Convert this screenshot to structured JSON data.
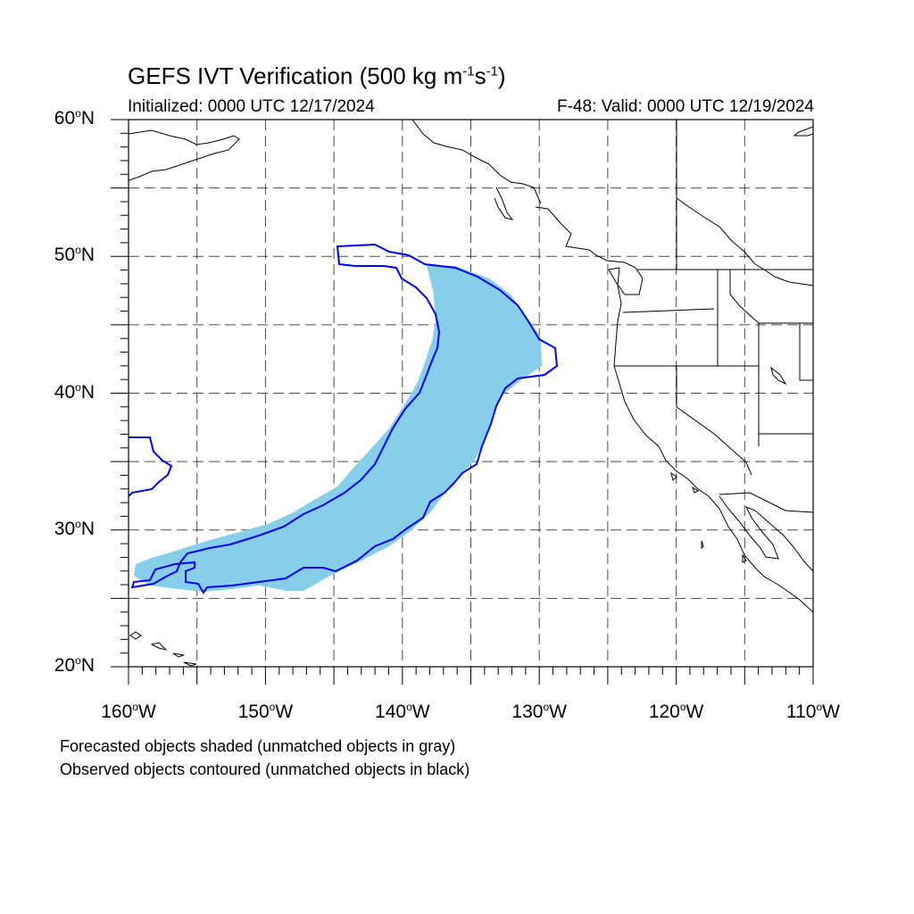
{
  "title": {
    "main": "GEFS IVT Verification (500 kg m",
    "exp1": "-1",
    "mid": "s",
    "exp2": "-1",
    "end": ")"
  },
  "subtitle": {
    "left": "Initialized: 0000 UTC 12/17/2024",
    "right": "F-48: Valid: 0000 UTC 12/19/2024"
  },
  "map_data": {
    "projection": "cylindrical equidistant",
    "lon_range": [
      -160,
      -110
    ],
    "lat_range": [
      20,
      60
    ],
    "grid": "dashed every 5 degrees",
    "lat_labels": [
      {
        "value": 60,
        "num": "60",
        "hemi": "N"
      },
      {
        "value": 50,
        "num": "50",
        "hemi": "N"
      },
      {
        "value": 40,
        "num": "40",
        "hemi": "N"
      },
      {
        "value": 30,
        "num": "30",
        "hemi": "N"
      },
      {
        "value": 20,
        "num": "20",
        "hemi": "N"
      }
    ],
    "lon_labels": [
      {
        "value": -160,
        "num": "160",
        "hemi": "W"
      },
      {
        "value": -150,
        "num": "150",
        "hemi": "W"
      },
      {
        "value": -140,
        "num": "140",
        "hemi": "W"
      },
      {
        "value": -130,
        "num": "130",
        "hemi": "W"
      },
      {
        "value": -120,
        "num": "120",
        "hemi": "W"
      },
      {
        "value": -110,
        "num": "110",
        "hemi": "W"
      }
    ],
    "colors": {
      "forecast_fill": "#87ceeb",
      "observed_contour": "#0000ff",
      "coastline": "#000000",
      "grid": "#000000"
    }
  },
  "notes": {
    "line1": "Forecasted objects shaded (unmatched objects in gray)",
    "line2": "Observed objects contoured (unmatched objects in black)"
  }
}
